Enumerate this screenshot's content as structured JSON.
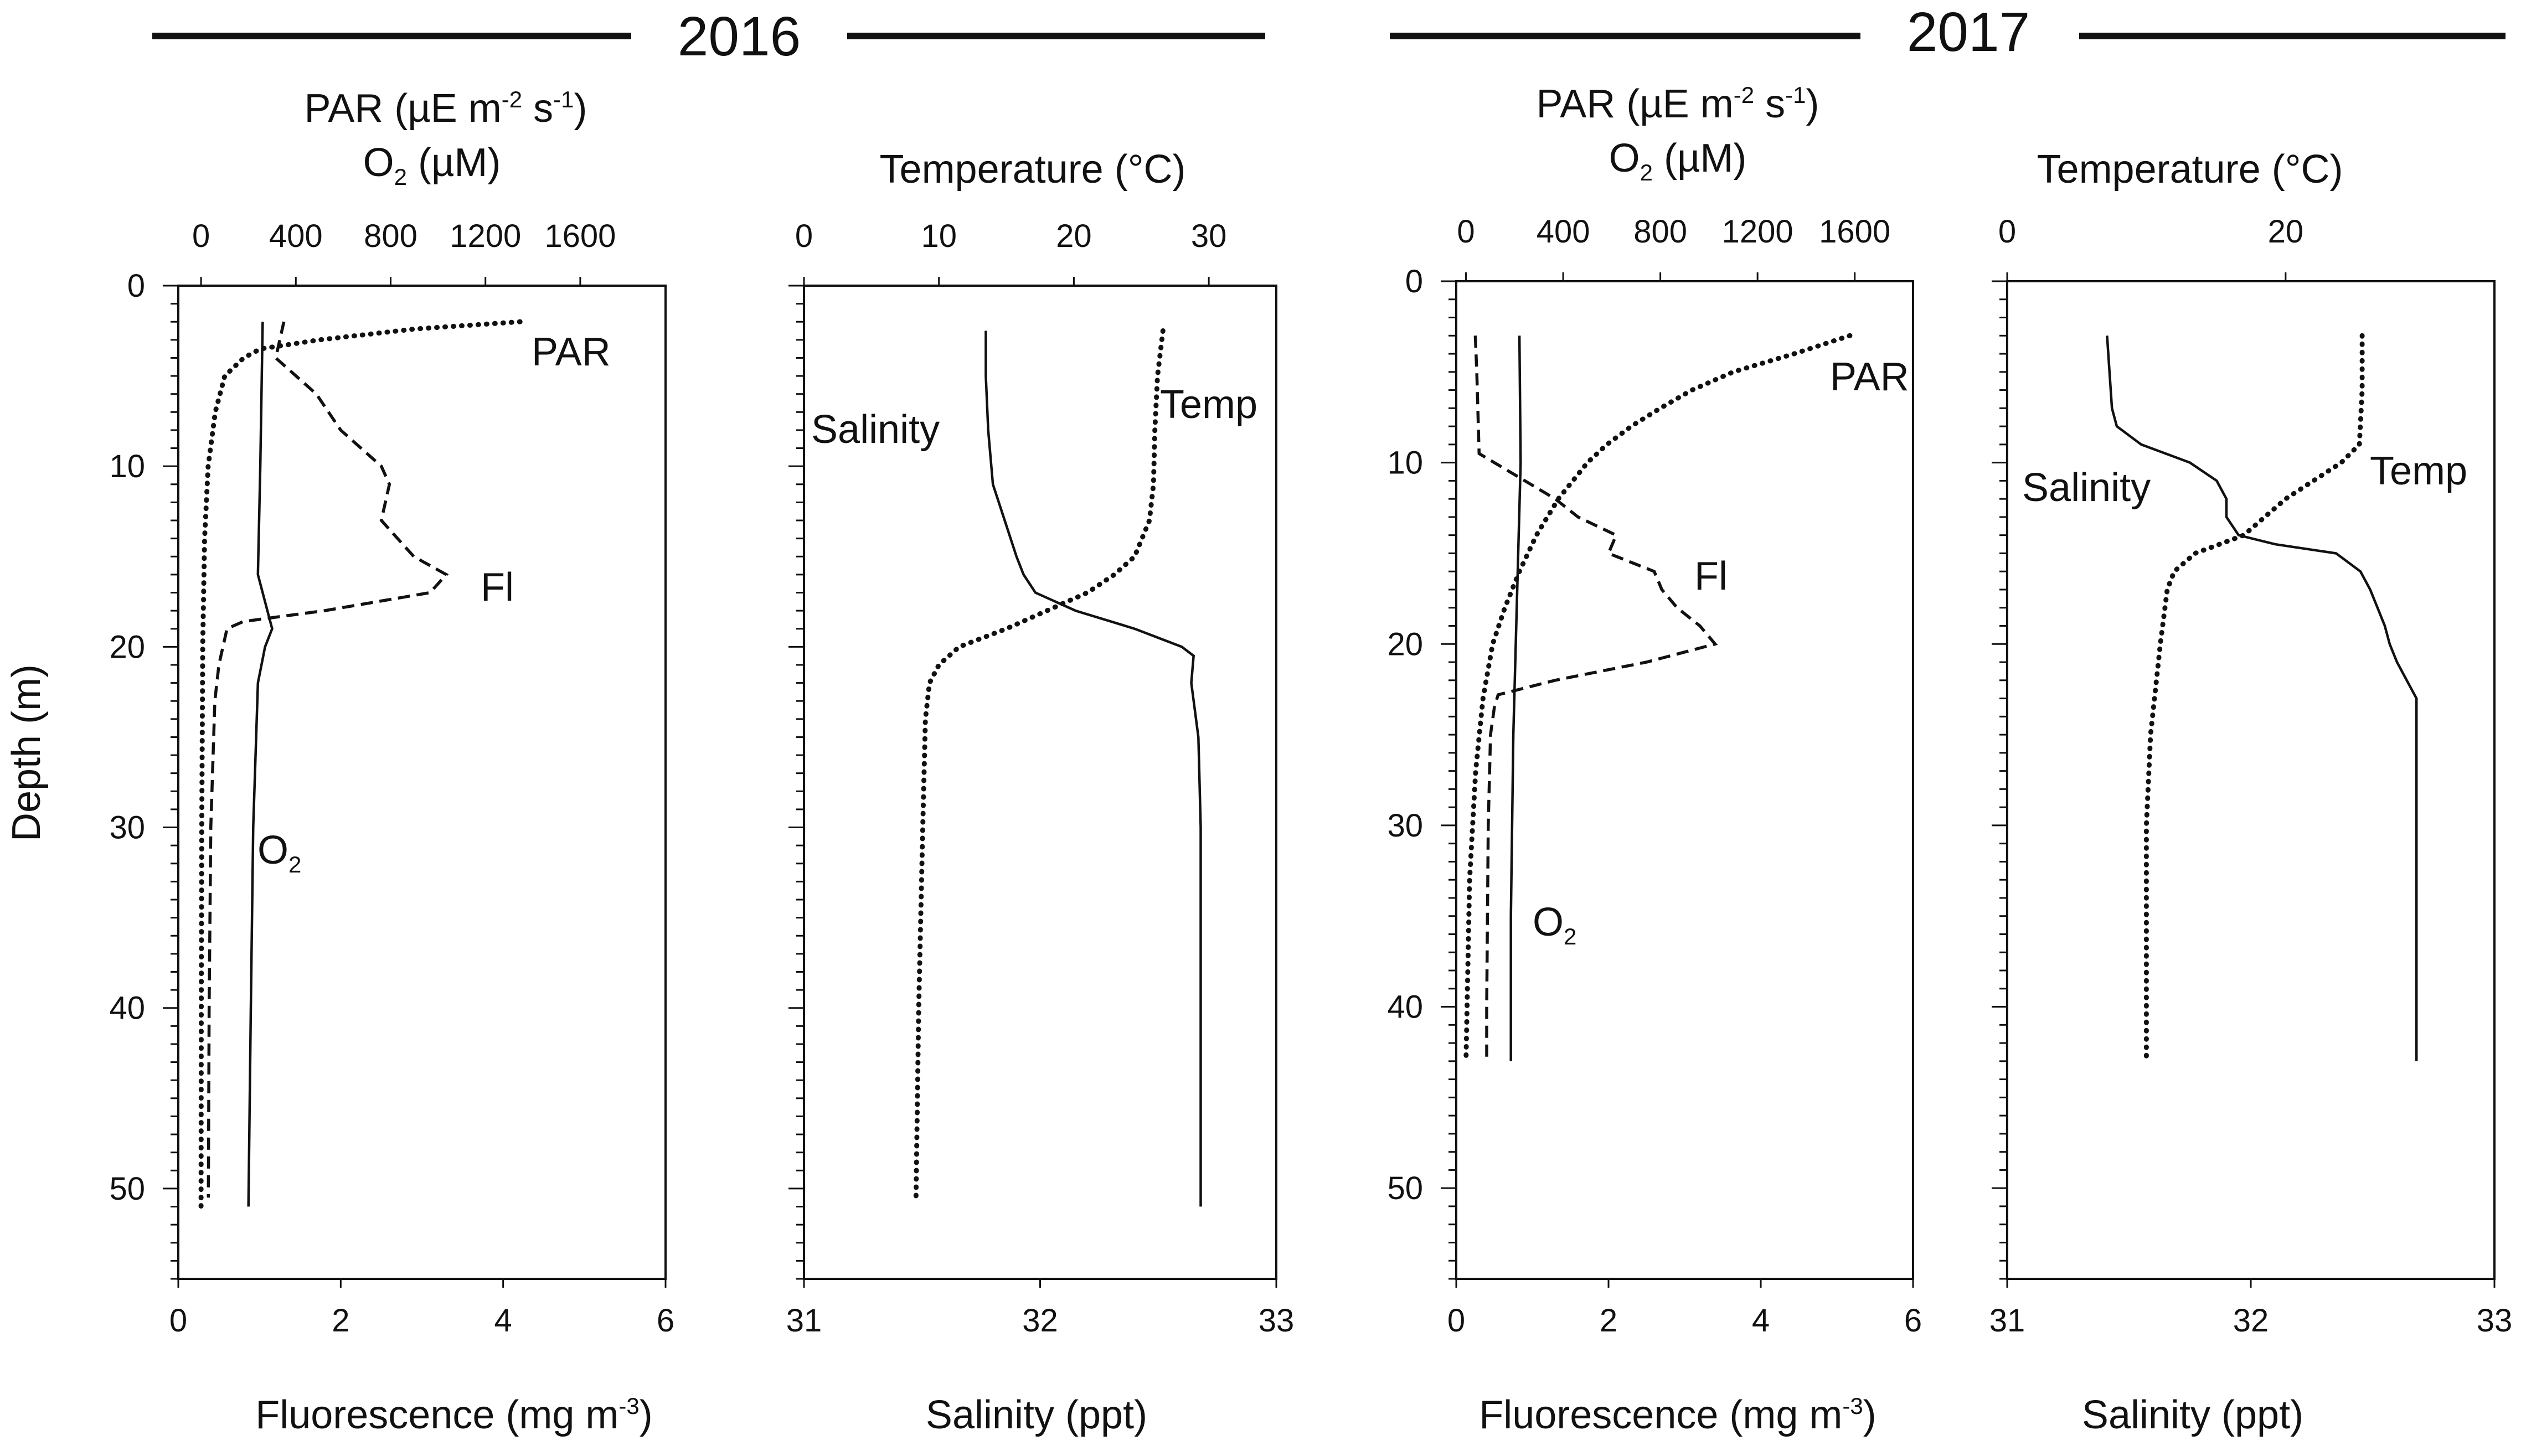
{
  "years": [
    "2016",
    "2017"
  ],
  "labels": {
    "depth_axis": "Depth (m)",
    "par_top": "PAR (µE m",
    "par_sup1": "-2",
    "par_mid": " s",
    "par_sup2": "-1",
    "par_close": ")",
    "o2_top_a": "O",
    "o2_top_sub": "2",
    "o2_top_b": " (µM)",
    "temp_top": "Temperature (°C)",
    "fluor_a": "Fluorescence (mg m",
    "fluor_sup": "-3",
    "fluor_b": ")",
    "sal_bottom": "Salinity (ppt)"
  },
  "chart_data": [
    {
      "type": "line",
      "panel": "2016 PAR / O2 / Fluorescence",
      "year": "2016",
      "xlabel_top": "PAR (µE m-2 s-1) / O2 (µM)",
      "xlabel_bottom": "Fluorescence (mg m-3)",
      "ylabel": "Depth (m)",
      "top_axis": {
        "range": [
          -96,
          1960
        ],
        "ticks": [
          "0",
          "400",
          "800",
          "1200",
          "1600"
        ],
        "tick_values": [
          0,
          400,
          800,
          1200,
          1600
        ]
      },
      "bottom_axis": {
        "range": [
          0,
          6
        ],
        "ticks": [
          "0",
          "2",
          "4",
          "6"
        ],
        "tick_values": [
          0,
          2,
          4,
          6
        ]
      },
      "y_axis": {
        "range": [
          0,
          55
        ],
        "inverted": true,
        "ticks": [
          "0",
          "10",
          "20",
          "30",
          "40",
          "50"
        ],
        "tick_values": [
          0,
          10,
          20,
          30,
          40,
          50
        ]
      },
      "series": [
        {
          "name": "PAR",
          "axis": "top",
          "style": "dotted",
          "depth": [
            2,
            2.4,
            3,
            3.5,
            4,
            5,
            7,
            10,
            14,
            20,
            30,
            40,
            51
          ],
          "values": [
            1346,
            900,
            500,
            250,
            180,
            100,
            60,
            30,
            15,
            7,
            3,
            1,
            0
          ]
        },
        {
          "name": "O2",
          "axis": "top",
          "style": "solid",
          "depth": [
            2,
            10,
            16,
            18,
            19,
            20,
            22,
            30,
            40,
            51
          ],
          "values": [
            260,
            250,
            240,
            280,
            300,
            270,
            240,
            220,
            210,
            200
          ]
        },
        {
          "name": "Fl",
          "axis": "bottom",
          "style": "dashed",
          "depth": [
            2,
            4,
            6,
            8,
            10,
            11,
            13,
            15,
            16,
            17,
            18,
            18.6,
            19,
            21,
            23,
            30,
            40,
            50.5
          ],
          "values": [
            1.3,
            1.2,
            1.7,
            2.0,
            2.5,
            2.6,
            2.5,
            2.9,
            3.3,
            3.1,
            1.8,
            0.8,
            0.6,
            0.5,
            0.45,
            0.4,
            0.38,
            0.37
          ]
        }
      ]
    },
    {
      "type": "line",
      "panel": "2016 Temperature / Salinity",
      "year": "2016",
      "xlabel_top": "Temperature (°C)",
      "xlabel_bottom": "Salinity (ppt)",
      "ylabel": "Depth (m)",
      "top_axis": {
        "range": [
          0,
          35
        ],
        "ticks": [
          "0",
          "10",
          "20",
          "30"
        ],
        "tick_values": [
          0,
          10,
          20,
          30
        ]
      },
      "bottom_axis": {
        "range": [
          31,
          33
        ],
        "ticks": [
          "31",
          "32",
          "33"
        ],
        "tick_values": [
          31,
          32,
          33
        ]
      },
      "y_axis": {
        "range": [
          0,
          55
        ],
        "inverted": true,
        "ticks": [],
        "tick_values": [
          0,
          10,
          20,
          30,
          40,
          50
        ]
      },
      "series": [
        {
          "name": "Salinity",
          "axis": "bottom",
          "style": "solid",
          "depth": [
            2.5,
            5,
            8,
            11,
            13,
            15,
            16,
            17,
            18,
            19,
            20,
            20.5,
            22,
            25,
            30,
            40,
            51
          ],
          "values": [
            31.77,
            31.77,
            31.78,
            31.8,
            31.85,
            31.9,
            31.93,
            31.98,
            32.15,
            32.4,
            32.6,
            32.65,
            32.64,
            32.67,
            32.68,
            32.68,
            32.68
          ]
        },
        {
          "name": "Temp",
          "axis": "top",
          "style": "dotted",
          "depth": [
            2.5,
            5,
            8,
            11,
            13,
            15,
            16,
            17,
            18,
            19,
            20,
            21,
            22,
            24,
            30,
            40,
            50.5
          ],
          "values": [
            26.6,
            26.2,
            26.0,
            25.9,
            25.6,
            24.5,
            23.0,
            21.0,
            18.0,
            15.0,
            11.5,
            10.0,
            9.3,
            9.0,
            8.8,
            8.5,
            8.3
          ]
        }
      ]
    },
    {
      "type": "line",
      "panel": "2017 PAR / O2 / Fluorescence",
      "year": "2017",
      "xlabel_top": "PAR (µE m-2 s-1) / O2 (µM)",
      "xlabel_bottom": "Fluorescence (mg m-3)",
      "ylabel": "Depth (m)",
      "top_axis": {
        "range": [
          -40,
          1840
        ],
        "ticks": [
          "0",
          "400",
          "800",
          "1200",
          "1600"
        ],
        "tick_values": [
          0,
          400,
          800,
          1200,
          1600
        ]
      },
      "bottom_axis": {
        "range": [
          0,
          6
        ],
        "ticks": [
          "0",
          "2",
          "4",
          "6"
        ],
        "tick_values": [
          0,
          2,
          4,
          6
        ]
      },
      "y_axis": {
        "range": [
          0,
          55
        ],
        "inverted": true,
        "ticks": [
          "0",
          "10",
          "20",
          "30",
          "40",
          "50"
        ],
        "tick_values": [
          0,
          10,
          20,
          30,
          40,
          50
        ]
      },
      "series": [
        {
          "name": "PAR",
          "axis": "top",
          "style": "dotted",
          "depth": [
            3,
            4,
            5,
            6,
            7,
            8,
            9,
            10,
            12,
            14,
            16,
            18,
            20,
            23,
            27,
            33,
            43
          ],
          "values": [
            1580,
            1350,
            1100,
            930,
            800,
            680,
            580,
            500,
            380,
            290,
            220,
            160,
            110,
            70,
            40,
            15,
            0
          ]
        },
        {
          "name": "O2",
          "axis": "top",
          "style": "solid",
          "depth": [
            3,
            10,
            15,
            20,
            25,
            30,
            35,
            43
          ],
          "values": [
            220,
            225,
            215,
            205,
            195,
            190,
            185,
            185
          ]
        },
        {
          "name": "Fl",
          "axis": "bottom",
          "style": "dashed",
          "depth": [
            3,
            5,
            9.5,
            11,
            12,
            13,
            14,
            15,
            16,
            17,
            18,
            19,
            20,
            21,
            22,
            22.8,
            23.5,
            25,
            30,
            40,
            43
          ],
          "values": [
            0.25,
            0.27,
            0.3,
            0.9,
            1.3,
            1.6,
            2.1,
            2.0,
            2.6,
            2.7,
            2.9,
            3.2,
            3.4,
            2.5,
            1.3,
            0.55,
            0.5,
            0.45,
            0.42,
            0.4,
            0.4
          ]
        }
      ]
    },
    {
      "type": "line",
      "panel": "2017 Temperature / Salinity",
      "year": "2017",
      "xlabel_top": "Temperature (°C)",
      "xlabel_bottom": "Salinity (ppt)",
      "ylabel": "Depth (m)",
      "top_axis": {
        "range": [
          0,
          35
        ],
        "ticks": [
          "0",
          "20"
        ],
        "tick_values": [
          0,
          20
        ]
      },
      "bottom_axis": {
        "range": [
          31,
          33
        ],
        "ticks": [
          "31",
          "32",
          "33"
        ],
        "tick_values": [
          31,
          32,
          33
        ]
      },
      "y_axis": {
        "range": [
          0,
          55
        ],
        "inverted": true,
        "ticks": [],
        "tick_values": [
          0,
          10,
          20,
          30,
          40,
          50
        ]
      },
      "series": [
        {
          "name": "Salinity",
          "axis": "bottom",
          "style": "solid",
          "depth": [
            3,
            5,
            7,
            8,
            9,
            10,
            11,
            12,
            13,
            14,
            14.5,
            15,
            16,
            17,
            18,
            19,
            20,
            21,
            22,
            23,
            25,
            30,
            43
          ],
          "values": [
            31.41,
            31.42,
            31.43,
            31.45,
            31.55,
            31.75,
            31.86,
            31.9,
            31.9,
            31.95,
            32.1,
            32.35,
            32.45,
            32.49,
            32.52,
            32.55,
            32.57,
            32.6,
            32.64,
            32.68,
            32.68,
            32.68,
            32.68
          ]
        },
        {
          "name": "Temp",
          "axis": "top",
          "style": "dotted",
          "depth": [
            3,
            6,
            9,
            10,
            11,
            12,
            13,
            14,
            15,
            16,
            17,
            20,
            25,
            30,
            43
          ],
          "values": [
            25.5,
            25.5,
            25.3,
            24.0,
            22.0,
            20.0,
            18.5,
            17.0,
            13.5,
            12.0,
            11.5,
            11.0,
            10.3,
            10.0,
            10.0
          ]
        }
      ]
    }
  ]
}
